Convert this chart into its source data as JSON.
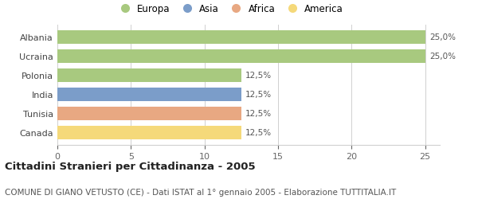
{
  "countries": [
    "Albania",
    "Ucraina",
    "Polonia",
    "India",
    "Tunisia",
    "Canada"
  ],
  "values": [
    25.0,
    25.0,
    12.5,
    12.5,
    12.5,
    12.5
  ],
  "bar_colors": [
    "#a8c97f",
    "#a8c97f",
    "#a8c97f",
    "#7b9dc9",
    "#e8a882",
    "#f5d97a"
  ],
  "bar_labels": [
    "25,0%",
    "25,0%",
    "12,5%",
    "12,5%",
    "12,5%",
    "12,5%"
  ],
  "legend_labels": [
    "Europa",
    "Asia",
    "Africa",
    "America"
  ],
  "legend_colors": [
    "#a8c97f",
    "#7b9dc9",
    "#e8a882",
    "#f5d97a"
  ],
  "xlim": [
    0,
    26
  ],
  "xticks": [
    0,
    5,
    10,
    15,
    20,
    25
  ],
  "title": "Cittadini Stranieri per Cittadinanza - 2005",
  "subtitle": "COMUNE DI GIANO VETUSTO (CE) - Dati ISTAT al 1° gennaio 2005 - Elaborazione TUTTITALIA.IT",
  "title_fontsize": 9.5,
  "subtitle_fontsize": 7.5,
  "label_fontsize": 7.5,
  "tick_fontsize": 8,
  "legend_fontsize": 8.5,
  "bg_color": "#ffffff",
  "grid_color": "#d0d0d0"
}
